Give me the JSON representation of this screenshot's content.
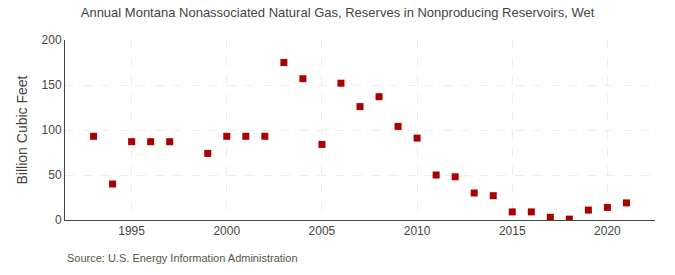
{
  "chart_data": {
    "type": "scatter",
    "title": "Annual Montana Nonassociated Natural Gas, Reserves in Nonproducing Reservoirs, Wet",
    "ylabel": "Billion Cubic Feet",
    "annotations": [
      "Source: U.S. Energy Information Administration"
    ],
    "x": [
      1993,
      1994,
      1995,
      1996,
      1997,
      1999,
      2000,
      2001,
      2002,
      2003,
      2004,
      2005,
      2006,
      2007,
      2008,
      2009,
      2010,
      2011,
      2012,
      2013,
      2014,
      2015,
      2016,
      2017,
      2018,
      2019,
      2020,
      2021
    ],
    "values": [
      93,
      40,
      87,
      87,
      87,
      74,
      93,
      93,
      93,
      175,
      157,
      84,
      152,
      126,
      137,
      104,
      91,
      50,
      48,
      30,
      27,
      9,
      9,
      3,
      1,
      11,
      14,
      19
    ],
    "color": "#aa0000",
    "marker": "square",
    "xlim": [
      1991.5,
      2022.5
    ],
    "xticks": [
      1995,
      2000,
      2005,
      2010,
      2015,
      2020
    ],
    "ylim": [
      0,
      200
    ],
    "yticks": [
      0,
      50,
      100,
      150,
      200
    ],
    "grid": true
  }
}
